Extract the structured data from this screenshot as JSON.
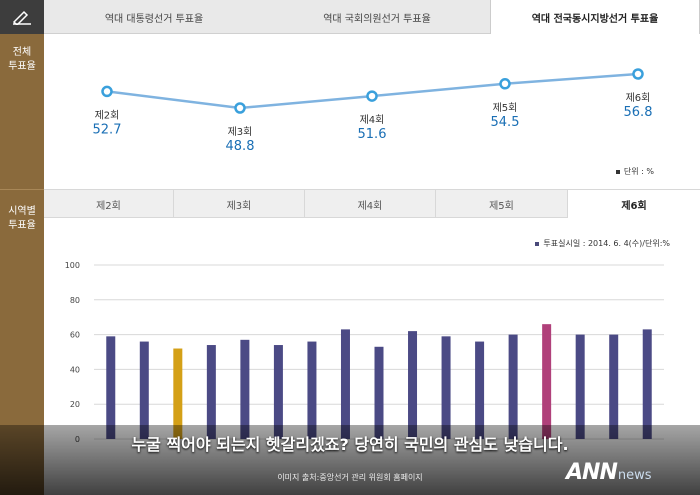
{
  "sidebar": {
    "section1": [
      "전체",
      "투표율"
    ],
    "section2": [
      "시역별",
      "투표율"
    ]
  },
  "tabs": [
    {
      "label": "역대 대통령선거 투표율",
      "active": false
    },
    {
      "label": "역대 국회의원선거 투표율",
      "active": false
    },
    {
      "label": "역대 전국동시지방선거 투표율",
      "active": true
    }
  ],
  "subtabs": [
    {
      "label": "제2회",
      "active": false
    },
    {
      "label": "제3회",
      "active": false
    },
    {
      "label": "제4회",
      "active": false
    },
    {
      "label": "제5회",
      "active": false
    },
    {
      "label": "제6회",
      "active": true
    }
  ],
  "chart_data": [
    {
      "type": "line",
      "categories": [
        "제2회",
        "제3회",
        "제4회",
        "제5회",
        "제6회"
      ],
      "series": [
        {
          "values": [
            52.7,
            48.8,
            51.6,
            54.5,
            56.8
          ]
        }
      ],
      "legend": "단위 : %",
      "legend_position": "bottom-right",
      "color": "#7fb3e0",
      "label_color": "#1a6fb5"
    },
    {
      "type": "bar",
      "title": "",
      "values": [
        59,
        56,
        52,
        54,
        57,
        54,
        56,
        63,
        53,
        62,
        59,
        56,
        60,
        66,
        60,
        60,
        63
      ],
      "colors": [
        "#4b4a85",
        "#4b4a85",
        "#d4a017",
        "#4b4a85",
        "#4b4a85",
        "#4b4a85",
        "#4b4a85",
        "#4b4a85",
        "#4b4a85",
        "#4b4a85",
        "#4b4a85",
        "#4b4a85",
        "#4b4a85",
        "#b0407a",
        "#4b4a85",
        "#4b4a85",
        "#4b4a85"
      ],
      "ylim": [
        0,
        100
      ],
      "yticks": [
        0,
        20,
        40,
        60,
        80,
        100
      ],
      "grid": true,
      "legend": "투표실시일 : 2014. 6. 4(수)/단위:%",
      "legend_position": "top-right"
    }
  ],
  "caption": "누굴 찍어야 되는지 헷갈리겠죠? 당연히 국민의 관심도 낮습니다.",
  "source": "이미지 출처:중앙선거 관리 위원회 홈페이지",
  "logo": {
    "main": "ANN",
    "suffix": "news"
  }
}
